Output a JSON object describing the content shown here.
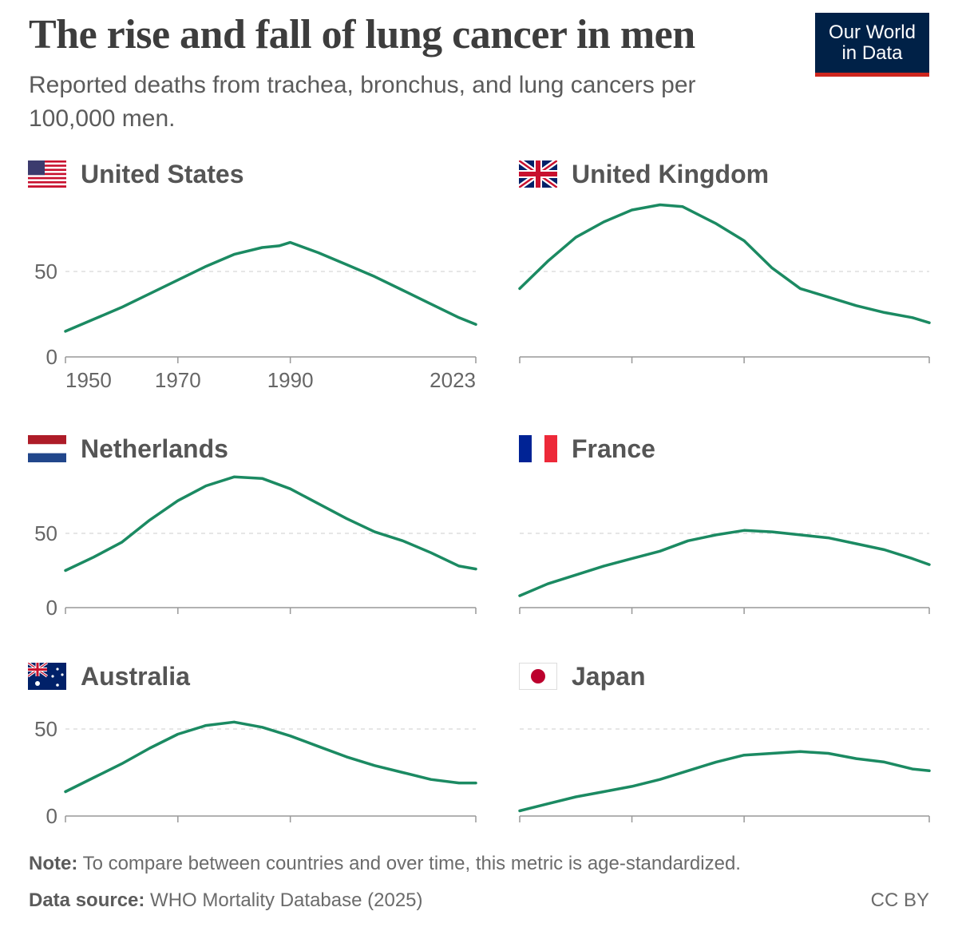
{
  "title": "The rise and fall of lung cancer in men",
  "subtitle": "Reported deaths from trachea, bronchus, and lung cancers per 100,000 men.",
  "logo": {
    "line1": "Our World",
    "line2": "in Data"
  },
  "note_label": "Note:",
  "note_text": " To compare between countries and over time, this metric is age-standardized.",
  "source_label": "Data source:",
  "source_text": " WHO Mortality Database (2025)",
  "license": "CC BY",
  "colors": {
    "line": "#1b8a62",
    "gridline": "#dddddd",
    "axis": "#999999",
    "logo_bg": "#002147",
    "logo_accent": "#ce261e"
  },
  "panels": {
    "us": {
      "name": "United States",
      "flag": "us-flag"
    },
    "uk": {
      "name": "United Kingdom",
      "flag": "uk-flag"
    },
    "nl": {
      "name": "Netherlands",
      "flag": "netherlands-flag"
    },
    "fr": {
      "name": "France",
      "flag": "france-flag"
    },
    "au": {
      "name": "Australia",
      "flag": "australia-flag"
    },
    "jp": {
      "name": "Japan",
      "flag": "japan-flag"
    }
  },
  "chart_data": [
    {
      "type": "line",
      "country": "United States",
      "x_ticks": [
        1950,
        1970,
        1990,
        2023
      ],
      "y_ticks": [
        0,
        50
      ],
      "ylim": [
        0,
        90
      ],
      "points": [
        [
          1950,
          15
        ],
        [
          1955,
          22
        ],
        [
          1960,
          29
        ],
        [
          1965,
          37
        ],
        [
          1970,
          45
        ],
        [
          1975,
          53
        ],
        [
          1980,
          60
        ],
        [
          1985,
          64
        ],
        [
          1988,
          65
        ],
        [
          1990,
          67
        ],
        [
          1995,
          61
        ],
        [
          2000,
          54
        ],
        [
          2005,
          47
        ],
        [
          2010,
          39
        ],
        [
          2015,
          31
        ],
        [
          2020,
          23
        ],
        [
          2023,
          19
        ]
      ]
    },
    {
      "type": "line",
      "country": "United Kingdom",
      "x_ticks": [
        1950,
        1970,
        1990,
        2023
      ],
      "y_ticks": [
        0,
        50
      ],
      "ylim": [
        0,
        90
      ],
      "points": [
        [
          1950,
          40
        ],
        [
          1955,
          56
        ],
        [
          1960,
          70
        ],
        [
          1965,
          79
        ],
        [
          1970,
          86
        ],
        [
          1975,
          89
        ],
        [
          1979,
          88
        ],
        [
          1985,
          78
        ],
        [
          1990,
          68
        ],
        [
          1995,
          52
        ],
        [
          2000,
          40
        ],
        [
          2005,
          35
        ],
        [
          2010,
          30
        ],
        [
          2015,
          26
        ],
        [
          2020,
          23
        ],
        [
          2023,
          20
        ]
      ]
    },
    {
      "type": "line",
      "country": "Netherlands",
      "x_ticks": [
        1950,
        1970,
        1990,
        2023
      ],
      "y_ticks": [
        0,
        50
      ],
      "ylim": [
        0,
        90
      ],
      "points": [
        [
          1950,
          25
        ],
        [
          1955,
          34
        ],
        [
          1960,
          44
        ],
        [
          1965,
          59
        ],
        [
          1970,
          72
        ],
        [
          1975,
          82
        ],
        [
          1980,
          88
        ],
        [
          1985,
          87
        ],
        [
          1990,
          80
        ],
        [
          1995,
          70
        ],
        [
          2000,
          60
        ],
        [
          2005,
          51
        ],
        [
          2010,
          45
        ],
        [
          2015,
          37
        ],
        [
          2020,
          28
        ],
        [
          2023,
          26
        ]
      ]
    },
    {
      "type": "line",
      "country": "France",
      "x_ticks": [
        1950,
        1970,
        1990,
        2023
      ],
      "y_ticks": [
        0,
        50
      ],
      "ylim": [
        0,
        90
      ],
      "points": [
        [
          1950,
          8
        ],
        [
          1955,
          16
        ],
        [
          1960,
          22
        ],
        [
          1965,
          28
        ],
        [
          1970,
          33
        ],
        [
          1975,
          38
        ],
        [
          1980,
          45
        ],
        [
          1985,
          49
        ],
        [
          1990,
          52
        ],
        [
          1995,
          51
        ],
        [
          2000,
          49
        ],
        [
          2005,
          47
        ],
        [
          2010,
          43
        ],
        [
          2015,
          39
        ],
        [
          2020,
          33
        ],
        [
          2023,
          29
        ]
      ]
    },
    {
      "type": "line",
      "country": "Australia",
      "x_ticks": [
        1950,
        1970,
        1990,
        2023
      ],
      "y_ticks": [
        0,
        50
      ],
      "ylim": [
        0,
        90
      ],
      "points": [
        [
          1950,
          14
        ],
        [
          1955,
          22
        ],
        [
          1960,
          30
        ],
        [
          1965,
          39
        ],
        [
          1970,
          47
        ],
        [
          1975,
          52
        ],
        [
          1980,
          54
        ],
        [
          1985,
          51
        ],
        [
          1990,
          46
        ],
        [
          1995,
          40
        ],
        [
          2000,
          34
        ],
        [
          2005,
          29
        ],
        [
          2010,
          25
        ],
        [
          2015,
          21
        ],
        [
          2020,
          19
        ],
        [
          2023,
          19
        ]
      ]
    },
    {
      "type": "line",
      "country": "Japan",
      "x_ticks": [
        1950,
        1970,
        1990,
        2023
      ],
      "y_ticks": [
        0,
        50
      ],
      "ylim": [
        0,
        90
      ],
      "points": [
        [
          1950,
          3
        ],
        [
          1955,
          7
        ],
        [
          1960,
          11
        ],
        [
          1965,
          14
        ],
        [
          1970,
          17
        ],
        [
          1975,
          21
        ],
        [
          1980,
          26
        ],
        [
          1985,
          31
        ],
        [
          1990,
          35
        ],
        [
          1995,
          36
        ],
        [
          2000,
          37
        ],
        [
          2005,
          36
        ],
        [
          2010,
          33
        ],
        [
          2015,
          31
        ],
        [
          2020,
          27
        ],
        [
          2023,
          26
        ]
      ]
    }
  ]
}
